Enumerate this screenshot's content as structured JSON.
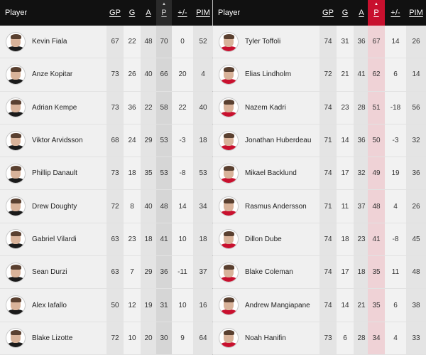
{
  "columns": {
    "player": "Player",
    "gp": "GP",
    "g": "G",
    "a": "A",
    "p": "P",
    "plusminus": "+/-",
    "pim": "PIM"
  },
  "sort_indicator": "▲",
  "colors": {
    "header_bg": "#111111",
    "sorted_accent_right": "#c8102e"
  },
  "left_table": {
    "rows": [
      {
        "name": "Kevin Fiala",
        "gp": "67",
        "g": "22",
        "a": "48",
        "p": "70",
        "pm": "0",
        "pim": "52"
      },
      {
        "name": "Anze Kopitar",
        "gp": "73",
        "g": "26",
        "a": "40",
        "p": "66",
        "pm": "20",
        "pim": "4"
      },
      {
        "name": "Adrian Kempe",
        "gp": "73",
        "g": "36",
        "a": "22",
        "p": "58",
        "pm": "22",
        "pim": "40"
      },
      {
        "name": "Viktor Arvidsson",
        "gp": "68",
        "g": "24",
        "a": "29",
        "p": "53",
        "pm": "-3",
        "pim": "18"
      },
      {
        "name": "Phillip Danault",
        "gp": "73",
        "g": "18",
        "a": "35",
        "p": "53",
        "pm": "-8",
        "pim": "53"
      },
      {
        "name": "Drew Doughty",
        "gp": "72",
        "g": "8",
        "a": "40",
        "p": "48",
        "pm": "14",
        "pim": "34"
      },
      {
        "name": "Gabriel Vilardi",
        "gp": "63",
        "g": "23",
        "a": "18",
        "p": "41",
        "pm": "10",
        "pim": "18"
      },
      {
        "name": "Sean Durzi",
        "gp": "63",
        "g": "7",
        "a": "29",
        "p": "36",
        "pm": "-11",
        "pim": "37"
      },
      {
        "name": "Alex Iafallo",
        "gp": "50",
        "g": "12",
        "a": "19",
        "p": "31",
        "pm": "10",
        "pim": "16"
      },
      {
        "name": "Blake Lizotte",
        "gp": "72",
        "g": "10",
        "a": "20",
        "p": "30",
        "pm": "9",
        "pim": "64"
      }
    ]
  },
  "right_table": {
    "rows": [
      {
        "name": "Tyler Toffoli",
        "gp": "74",
        "g": "31",
        "a": "36",
        "p": "67",
        "pm": "14",
        "pim": "26"
      },
      {
        "name": "Elias Lindholm",
        "gp": "72",
        "g": "21",
        "a": "41",
        "p": "62",
        "pm": "6",
        "pim": "14"
      },
      {
        "name": "Nazem Kadri",
        "gp": "74",
        "g": "23",
        "a": "28",
        "p": "51",
        "pm": "-18",
        "pim": "56"
      },
      {
        "name": "Jonathan Huberdeau",
        "gp": "71",
        "g": "14",
        "a": "36",
        "p": "50",
        "pm": "-3",
        "pim": "32"
      },
      {
        "name": "Mikael Backlund",
        "gp": "74",
        "g": "17",
        "a": "32",
        "p": "49",
        "pm": "19",
        "pim": "36"
      },
      {
        "name": "Rasmus Andersson",
        "gp": "71",
        "g": "11",
        "a": "37",
        "p": "48",
        "pm": "4",
        "pim": "26"
      },
      {
        "name": "Dillon Dube",
        "gp": "74",
        "g": "18",
        "a": "23",
        "p": "41",
        "pm": "-8",
        "pim": "45"
      },
      {
        "name": "Blake Coleman",
        "gp": "74",
        "g": "17",
        "a": "18",
        "p": "35",
        "pm": "11",
        "pim": "48"
      },
      {
        "name": "Andrew Mangiapane",
        "gp": "74",
        "g": "14",
        "a": "21",
        "p": "35",
        "pm": "6",
        "pim": "38"
      },
      {
        "name": "Noah Hanifin",
        "gp": "73",
        "g": "6",
        "a": "28",
        "p": "34",
        "pm": "4",
        "pim": "33"
      }
    ]
  }
}
